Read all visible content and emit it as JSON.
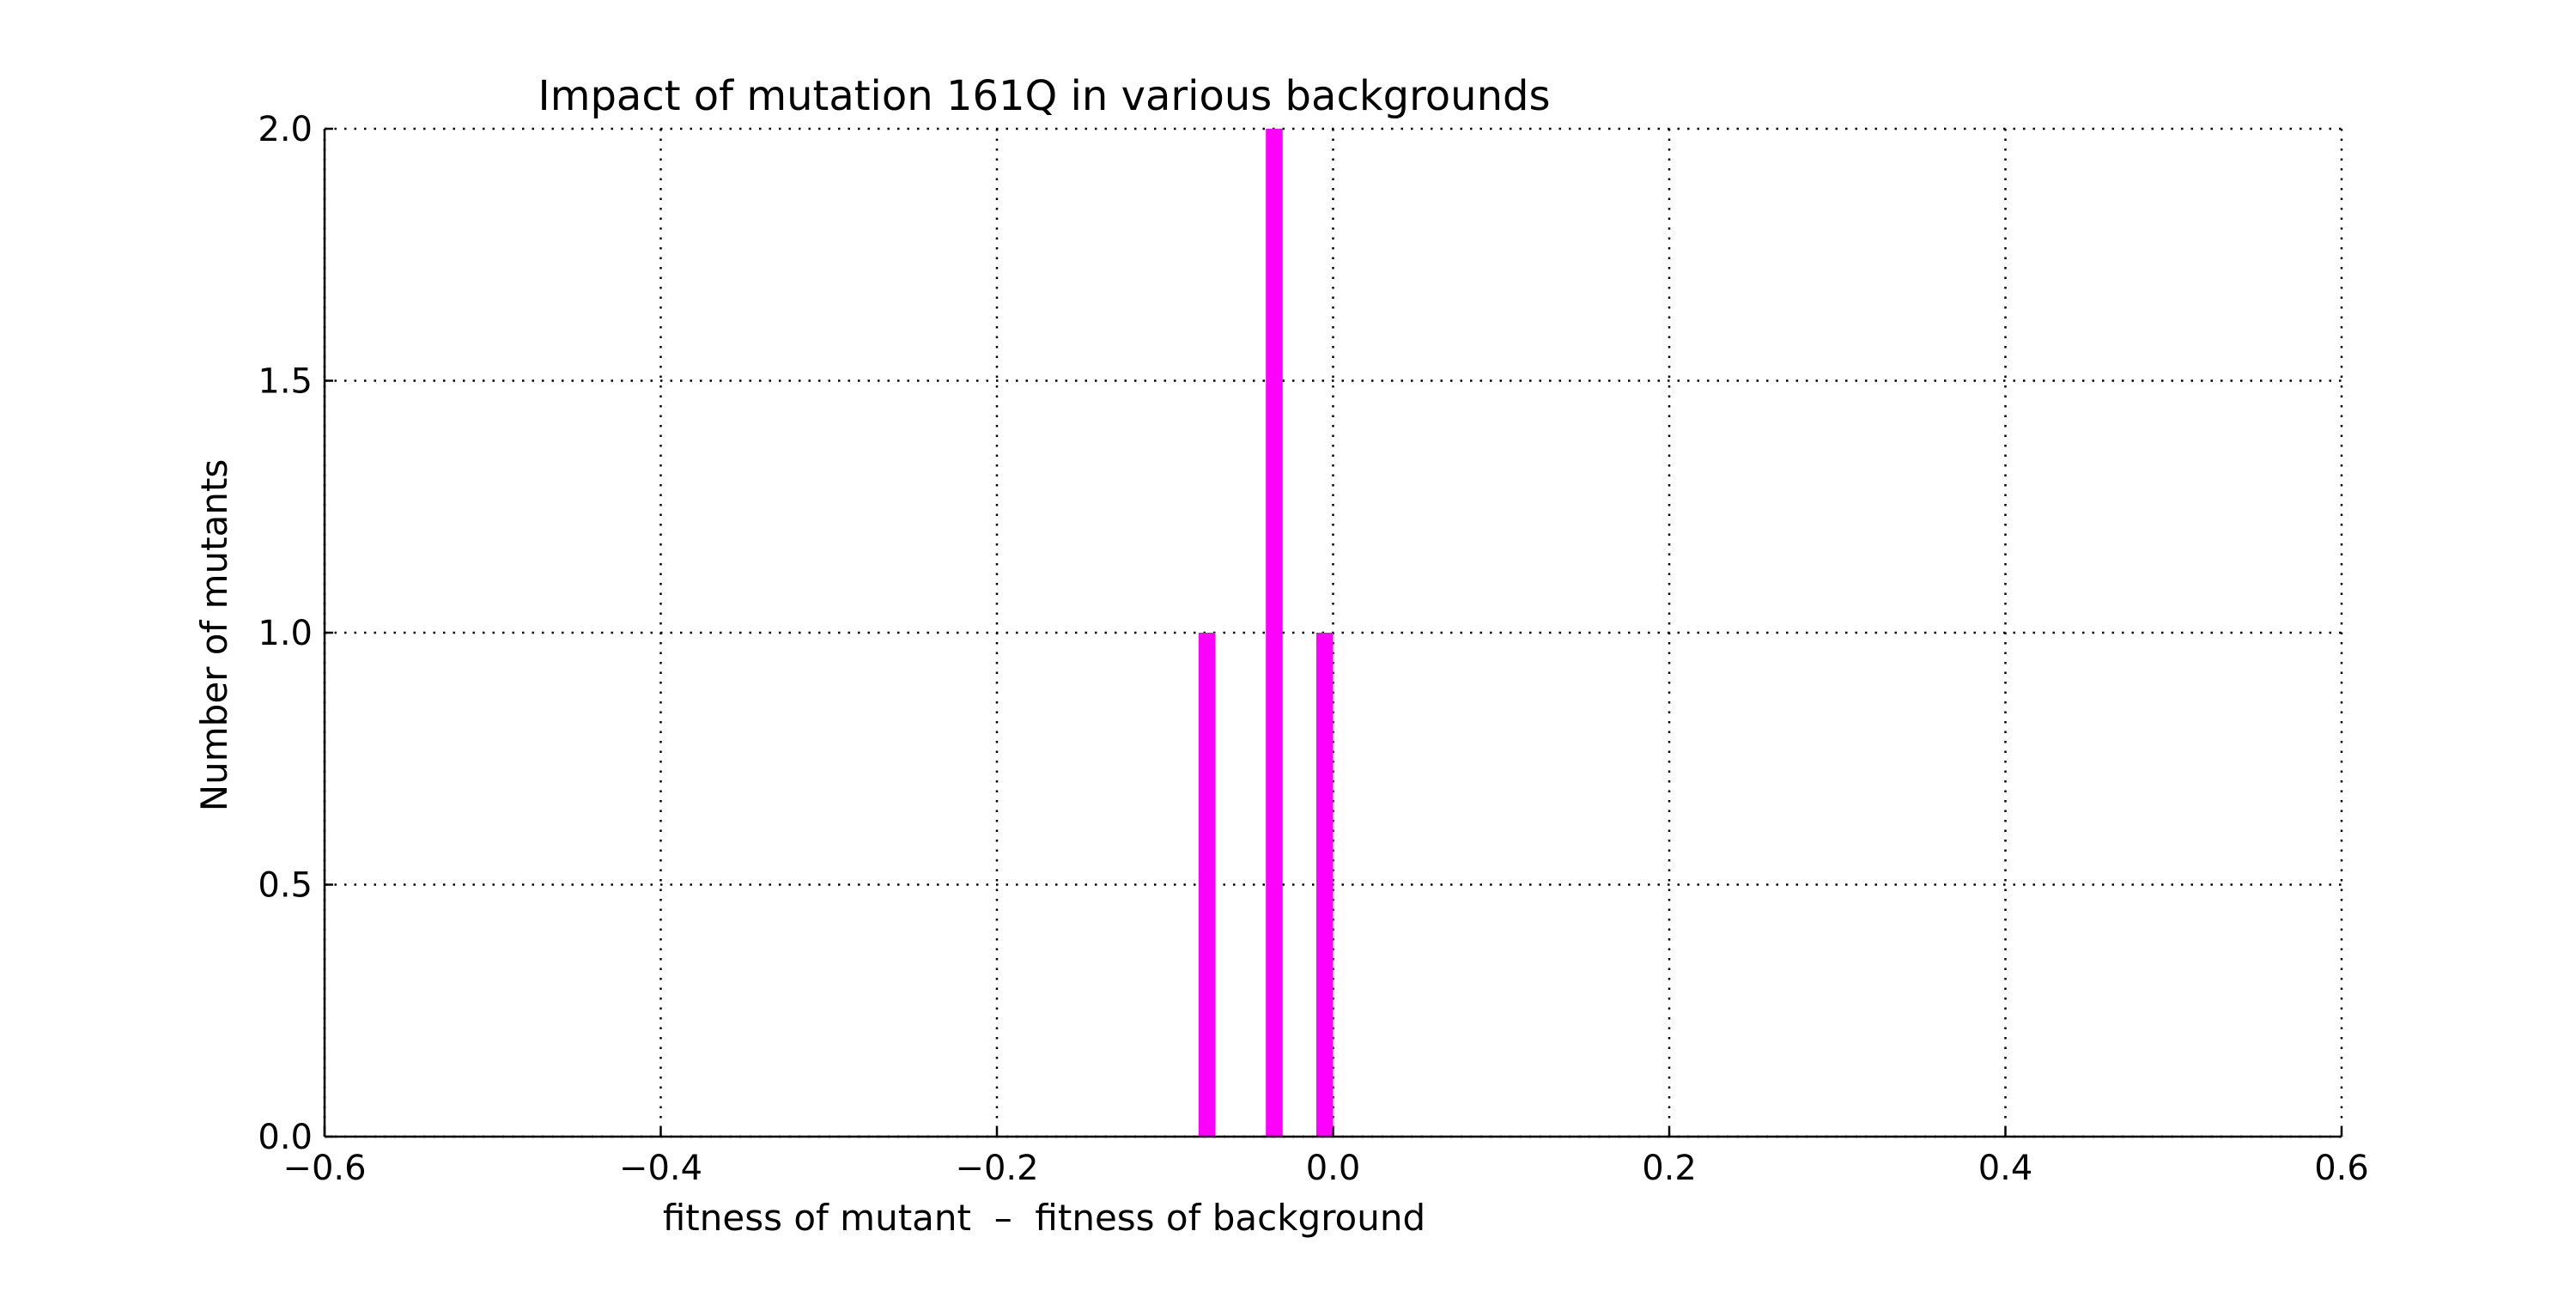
{
  "chart_data": {
    "type": "bar",
    "title": "Impact of mutation 161Q in various backgrounds",
    "xlabel": "fitness of mutant  –  fitness of background",
    "ylabel": "Number of mutants",
    "xlim": [
      -0.6,
      0.6
    ],
    "ylim": [
      0.0,
      2.0
    ],
    "x_ticks": [
      -0.6,
      -0.4,
      -0.2,
      0.0,
      0.2,
      0.4,
      0.6
    ],
    "x_tick_labels": [
      "−0.6",
      "−0.4",
      "−0.2",
      "0.0",
      "0.2",
      "0.4",
      "0.6"
    ],
    "y_ticks": [
      0.0,
      0.5,
      1.0,
      1.5,
      2.0
    ],
    "y_tick_labels": [
      "0.0",
      "0.5",
      "1.0",
      "1.5",
      "2.0"
    ],
    "grid": true,
    "bar_color": "#ff00ff",
    "bars": [
      {
        "x_start": -0.08,
        "x_end": -0.07,
        "value": 1
      },
      {
        "x_start": -0.04,
        "x_end": -0.03,
        "value": 2
      },
      {
        "x_start": -0.01,
        "x_end": 0.0,
        "value": 1
      }
    ]
  }
}
